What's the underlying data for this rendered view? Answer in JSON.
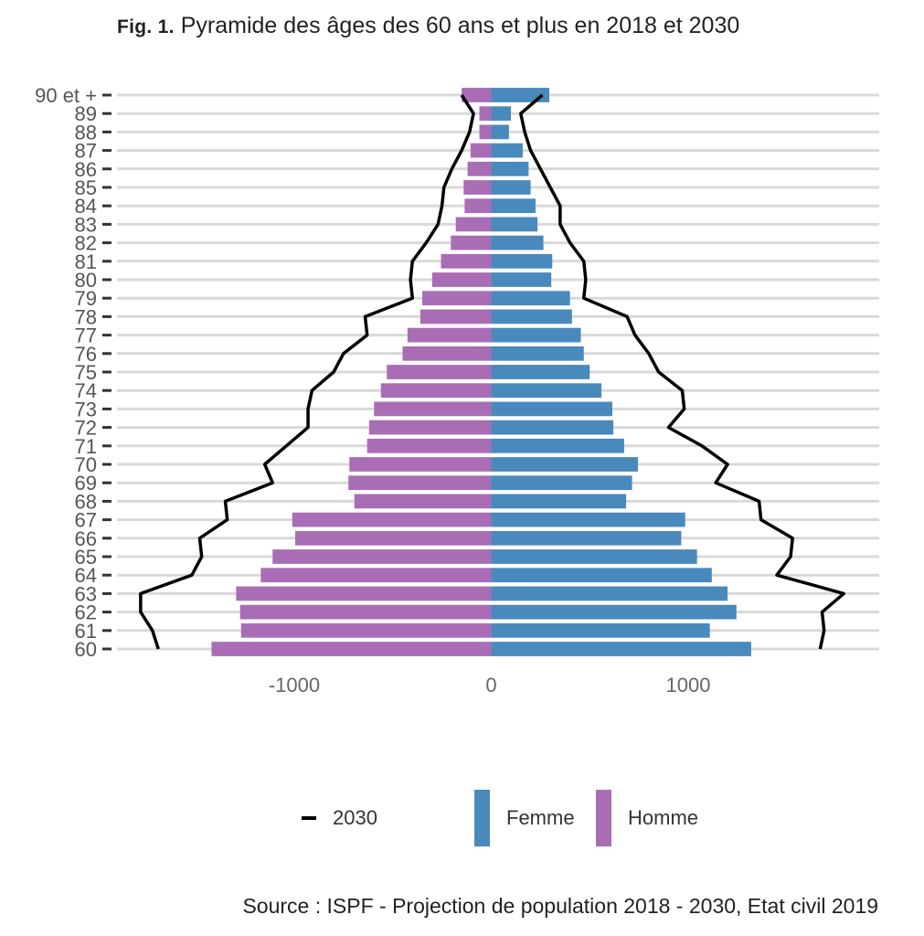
{
  "title": {
    "prefix": "Fig. 1.",
    "text": "Pyramide des âges des 60 ans et plus en 2018 et 2030"
  },
  "source": "Source : ISPF - Projection de population 2018 - 2030, Etat civil 2019",
  "legend": {
    "items": [
      {
        "key": "line2030",
        "label": "2030",
        "color": "#000000"
      },
      {
        "key": "femme",
        "label": "Femme",
        "color": "#4a89bc"
      },
      {
        "key": "homme",
        "label": "Homme",
        "color": "#a96db5"
      }
    ]
  },
  "chart_data": {
    "type": "bar",
    "orientation": "horizontal",
    "title": "Pyramide des âges des 60 ans et plus en 2018 et 2030",
    "categories": [
      "60",
      "61",
      "62",
      "63",
      "64",
      "65",
      "66",
      "67",
      "68",
      "69",
      "70",
      "71",
      "72",
      "73",
      "74",
      "75",
      "76",
      "77",
      "78",
      "79",
      "80",
      "81",
      "82",
      "83",
      "84",
      "85",
      "86",
      "87",
      "88",
      "89",
      "90 et +"
    ],
    "x_ticks": [
      "-1000",
      "0",
      "1000"
    ],
    "xlim": [
      -1900,
      1970
    ],
    "series": [
      {
        "name": "Homme",
        "color": "#a96db5",
        "values": [
          -1420,
          -1270,
          -1275,
          -1295,
          -1170,
          -1110,
          -995,
          -1010,
          -695,
          -725,
          -720,
          -630,
          -620,
          -595,
          -560,
          -530,
          -450,
          -425,
          -360,
          -350,
          -300,
          -255,
          -205,
          -180,
          -135,
          -140,
          -120,
          -105,
          -60,
          -60,
          -150
        ]
      },
      {
        "name": "Femme",
        "color": "#4a89bc",
        "values": [
          1320,
          1110,
          1245,
          1200,
          1120,
          1045,
          965,
          985,
          685,
          715,
          745,
          675,
          620,
          615,
          560,
          500,
          470,
          455,
          410,
          400,
          305,
          310,
          265,
          235,
          225,
          200,
          190,
          160,
          90,
          100,
          295
        ]
      },
      {
        "name": "2030",
        "type": "line",
        "color": "#000000",
        "left": [
          -1690,
          -1720,
          -1780,
          -1780,
          -1520,
          -1470,
          -1480,
          -1340,
          -1350,
          -1110,
          -1150,
          -1040,
          -930,
          -930,
          -910,
          -800,
          -750,
          -630,
          -640,
          -400,
          -410,
          -400,
          -330,
          -270,
          -250,
          -240,
          -200,
          -150,
          -110,
          -90,
          -150
        ],
        "right": [
          1670,
          1690,
          1680,
          1790,
          1450,
          1520,
          1530,
          1370,
          1360,
          1140,
          1200,
          1070,
          900,
          980,
          970,
          850,
          800,
          730,
          690,
          470,
          480,
          470,
          400,
          350,
          350,
          300,
          250,
          200,
          170,
          150,
          260
        ]
      }
    ]
  }
}
